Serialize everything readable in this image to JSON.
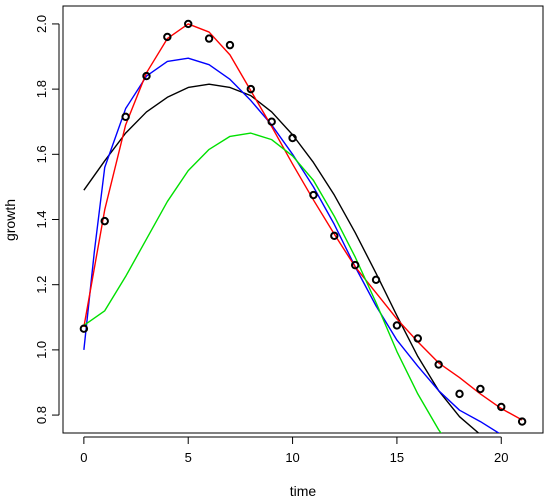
{
  "chart_data": {
    "type": "line",
    "title": "",
    "xlabel": "time",
    "ylabel": "growth",
    "xlim": [
      -1,
      22
    ],
    "ylim": [
      0.745,
      2.055
    ],
    "x_ticks": [
      0,
      5,
      10,
      15,
      20
    ],
    "y_ticks": [
      0.8,
      1.0,
      1.2,
      1.4,
      1.6,
      1.8,
      2.0
    ],
    "grid": false,
    "legend": "none",
    "points": {
      "x": [
        0,
        1,
        2,
        3,
        4,
        5,
        6,
        7,
        8,
        9,
        10,
        11,
        12,
        13,
        14,
        15,
        16,
        17,
        18,
        19,
        20,
        21
      ],
      "y": [
        1.065,
        1.395,
        1.715,
        1.84,
        1.96,
        2.0,
        1.955,
        1.935,
        1.8,
        1.7,
        1.65,
        1.475,
        1.35,
        1.26,
        1.215,
        1.075,
        1.035,
        0.955,
        0.865,
        0.88,
        0.825,
        0.78
      ]
    },
    "series": [
      {
        "color": "#000000",
        "x": [
          0,
          1,
          2,
          3,
          4,
          5,
          6,
          7,
          8,
          9,
          10,
          11,
          12,
          13,
          14,
          15,
          16,
          17,
          18,
          19
        ],
        "y": [
          1.49,
          1.58,
          1.665,
          1.73,
          1.775,
          1.805,
          1.815,
          1.805,
          1.78,
          1.73,
          1.66,
          1.575,
          1.475,
          1.36,
          1.235,
          1.105,
          0.98,
          0.875,
          0.795,
          0.74
        ]
      },
      {
        "color": "#0000ff",
        "x": [
          0,
          0.5,
          1,
          2,
          3,
          4,
          5,
          6,
          7,
          8,
          9,
          10,
          11,
          12,
          13,
          14,
          15,
          16,
          17,
          18,
          19,
          20
        ],
        "y": [
          1.0,
          1.3,
          1.56,
          1.74,
          1.84,
          1.885,
          1.895,
          1.875,
          1.83,
          1.765,
          1.69,
          1.6,
          1.5,
          1.385,
          1.255,
          1.135,
          1.03,
          0.95,
          0.875,
          0.815,
          0.78,
          0.74
        ]
      },
      {
        "color": "#ff0000",
        "x": [
          0,
          1,
          2,
          3,
          4,
          5,
          6,
          7,
          8,
          9,
          10,
          11,
          12,
          13,
          14,
          15,
          16,
          17,
          18,
          19,
          20,
          21
        ],
        "y": [
          1.07,
          1.43,
          1.69,
          1.85,
          1.955,
          2.0,
          1.975,
          1.905,
          1.795,
          1.685,
          1.57,
          1.46,
          1.355,
          1.255,
          1.175,
          1.095,
          1.025,
          0.96,
          0.915,
          0.865,
          0.82,
          0.785
        ]
      },
      {
        "color": "#00e000",
        "x": [
          0,
          1,
          2,
          3,
          4,
          5,
          6,
          7,
          8,
          9,
          10,
          11,
          12,
          13,
          14,
          15,
          16,
          17,
          17.5
        ],
        "y": [
          1.075,
          1.12,
          1.225,
          1.34,
          1.455,
          1.55,
          1.615,
          1.655,
          1.665,
          1.645,
          1.595,
          1.52,
          1.41,
          1.285,
          1.145,
          0.995,
          0.865,
          0.755,
          0.71
        ]
      }
    ]
  }
}
